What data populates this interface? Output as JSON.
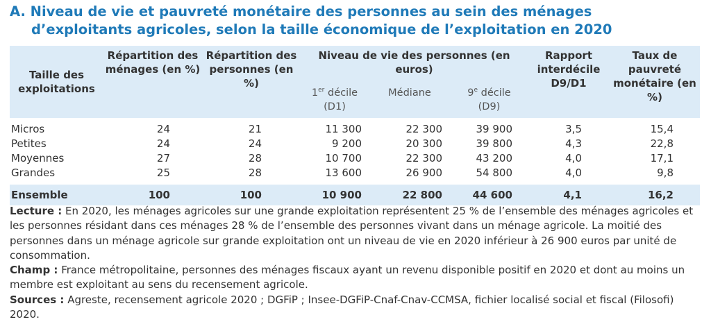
{
  "title": {
    "prefix": "A.",
    "line1": "Niveau de vie et pauvreté monétaire des personnes au sein des ménages",
    "line2": "d’exploitants agricoles, selon la taille économique de l’exploitation en 2020"
  },
  "table": {
    "headers": {
      "size": "Taille des exploitations",
      "households": "Répartition des ménages (en %)",
      "persons": "Répartition des personnes (en %)",
      "living_group": "Niveau de vie des personnes (en euros)",
      "d1_a": "1",
      "d1_sup": "er",
      "d1_b": " décile",
      "d1_c": "(D1)",
      "median": "Médiane",
      "d9_a": "9",
      "d9_sup": "e",
      "d9_b": " décile",
      "d9_c": "(D9)",
      "ratio": "Rapport interdécile D9/D1",
      "poverty": "Taux de pauvreté monétaire (en %)"
    },
    "rows": [
      {
        "label": "Micros",
        "households": "24",
        "persons": "21",
        "d1": "11 300",
        "median": "22 300",
        "d9": "39 900",
        "ratio": "3,5",
        "poverty": "15,4"
      },
      {
        "label": "Petites",
        "households": "24",
        "persons": "24",
        "d1": "9 200",
        "median": "20 300",
        "d9": "39 800",
        "ratio": "4,3",
        "poverty": "22,8"
      },
      {
        "label": "Moyennes",
        "households": "27",
        "persons": "28",
        "d1": "10 700",
        "median": "22 300",
        "d9": "43 200",
        "ratio": "4,0",
        "poverty": "17,1"
      },
      {
        "label": "Grandes",
        "households": "25",
        "persons": "28",
        "d1": "13 600",
        "median": "26 900",
        "d9": "54 800",
        "ratio": "4,0",
        "poverty": "9,8"
      }
    ],
    "total": {
      "label": "Ensemble",
      "households": "100",
      "persons": "100",
      "d1": "10 900",
      "median": "22 800",
      "d9": "44 600",
      "ratio": "4,1",
      "poverty": "16,2"
    }
  },
  "notes": {
    "lecture_label": "Lecture :",
    "lecture_text": "En 2020, les ménages agricoles sur une grande exploitation représentent 25 % de l’ensemble des ménages agricoles et les personnes résidant dans ces ménages 28 % de l’ensemble des personnes vivant dans un ménage agricole. La moitié des personnes dans un ménage agricole sur grande exploitation ont un niveau de vie en 2020 inférieur à 26 900 euros par unité de consommation.",
    "champ_label": "Champ :",
    "champ_text": "France métropolitaine, personnes des ménages fiscaux ayant un revenu disponible positif en 2020 et dont au moins un membre est exploitant au sens du recensement agricole.",
    "sources_label": "Sources :",
    "sources_text": "Agreste, recensement agricole 2020 ; DGFiP ; Insee-DGFiP-Cnaf-Cnav-CCMSA, fichier localisé social et fiscal (Filosofi) 2020."
  },
  "colors": {
    "title": "#1f7ab8",
    "header_bg": "#dcebf7",
    "text": "#333333"
  }
}
